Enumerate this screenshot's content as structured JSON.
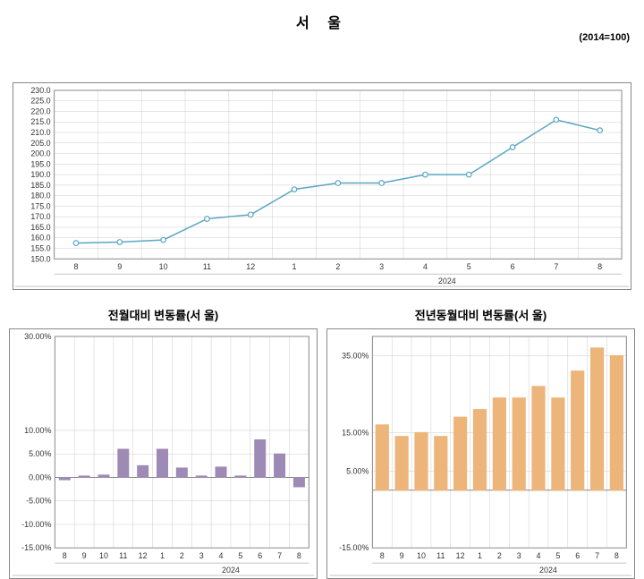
{
  "title": "서   울",
  "subtitle_right": "(2014=100)",
  "line_chart": {
    "type": "line",
    "x_labels": [
      "8",
      "9",
      "10",
      "11",
      "12",
      "1",
      "2",
      "3",
      "4",
      "5",
      "6",
      "7",
      "8"
    ],
    "x_group_label": "2024",
    "x_group_start_index": 5,
    "values": [
      157.5,
      158,
      159,
      169,
      171,
      183,
      186,
      186,
      190,
      190,
      203,
      216,
      211
    ],
    "ylim": [
      150.0,
      230.0
    ],
    "ytick_step": 5.0,
    "line_color": "#5aa6c4",
    "marker_fill": "#ffffff",
    "marker_stroke": "#5aa6c4",
    "grid_color": "#cccccc",
    "plot_border": "#888888",
    "background": "#ffffff",
    "label_fontsize": 9
  },
  "mom_chart": {
    "title": "전월대비 변동률(서   울)",
    "type": "bar",
    "x_labels": [
      "8",
      "9",
      "10",
      "11",
      "12",
      "1",
      "2",
      "3",
      "4",
      "5",
      "6",
      "7",
      "8"
    ],
    "x_group_label": "2024",
    "x_group_start_index": 5,
    "values": [
      -0.5,
      0.3,
      0.5,
      6.0,
      2.5,
      6.0,
      2.0,
      0.3,
      2.2,
      0.3,
      8.0,
      5.0,
      -2.0
    ],
    "ylim": [
      -15.0,
      30.0
    ],
    "yticks": [
      -15.0,
      -10.0,
      -5.0,
      0.0,
      5.0,
      10.0,
      30.0
    ],
    "ytick_labels": [
      "-15.00%",
      "-10.00%",
      "-5.00%",
      "0.00%",
      "5.00%",
      "10.00%",
      "30.00%"
    ],
    "bar_color": "#9e8bb5",
    "grid_color": "#cccccc",
    "plot_border": "#888888",
    "background": "#ffffff",
    "label_fontsize": 9,
    "bar_width": 0.55
  },
  "yoy_chart": {
    "title": "전년동월대비 변동률(서   울)",
    "type": "bar",
    "x_labels": [
      "8",
      "9",
      "10",
      "11",
      "12",
      "1",
      "2",
      "3",
      "4",
      "5",
      "6",
      "7",
      "8"
    ],
    "x_group_label": "2024",
    "x_group_start_index": 5,
    "values": [
      17,
      14,
      15,
      14,
      19,
      21,
      24,
      24,
      27,
      24,
      31,
      37,
      35
    ],
    "ylim": [
      -15.0,
      40.0
    ],
    "yticks": [
      -15.0,
      5.0,
      15.0,
      35.0
    ],
    "ytick_labels": [
      "-15.00%",
      "5.00%",
      "15.00%",
      "35.00%"
    ],
    "bar_color": "#edb57a",
    "grid_color": "#cccccc",
    "plot_border": "#888888",
    "background": "#ffffff",
    "label_fontsize": 9,
    "bar_width": 0.65
  }
}
